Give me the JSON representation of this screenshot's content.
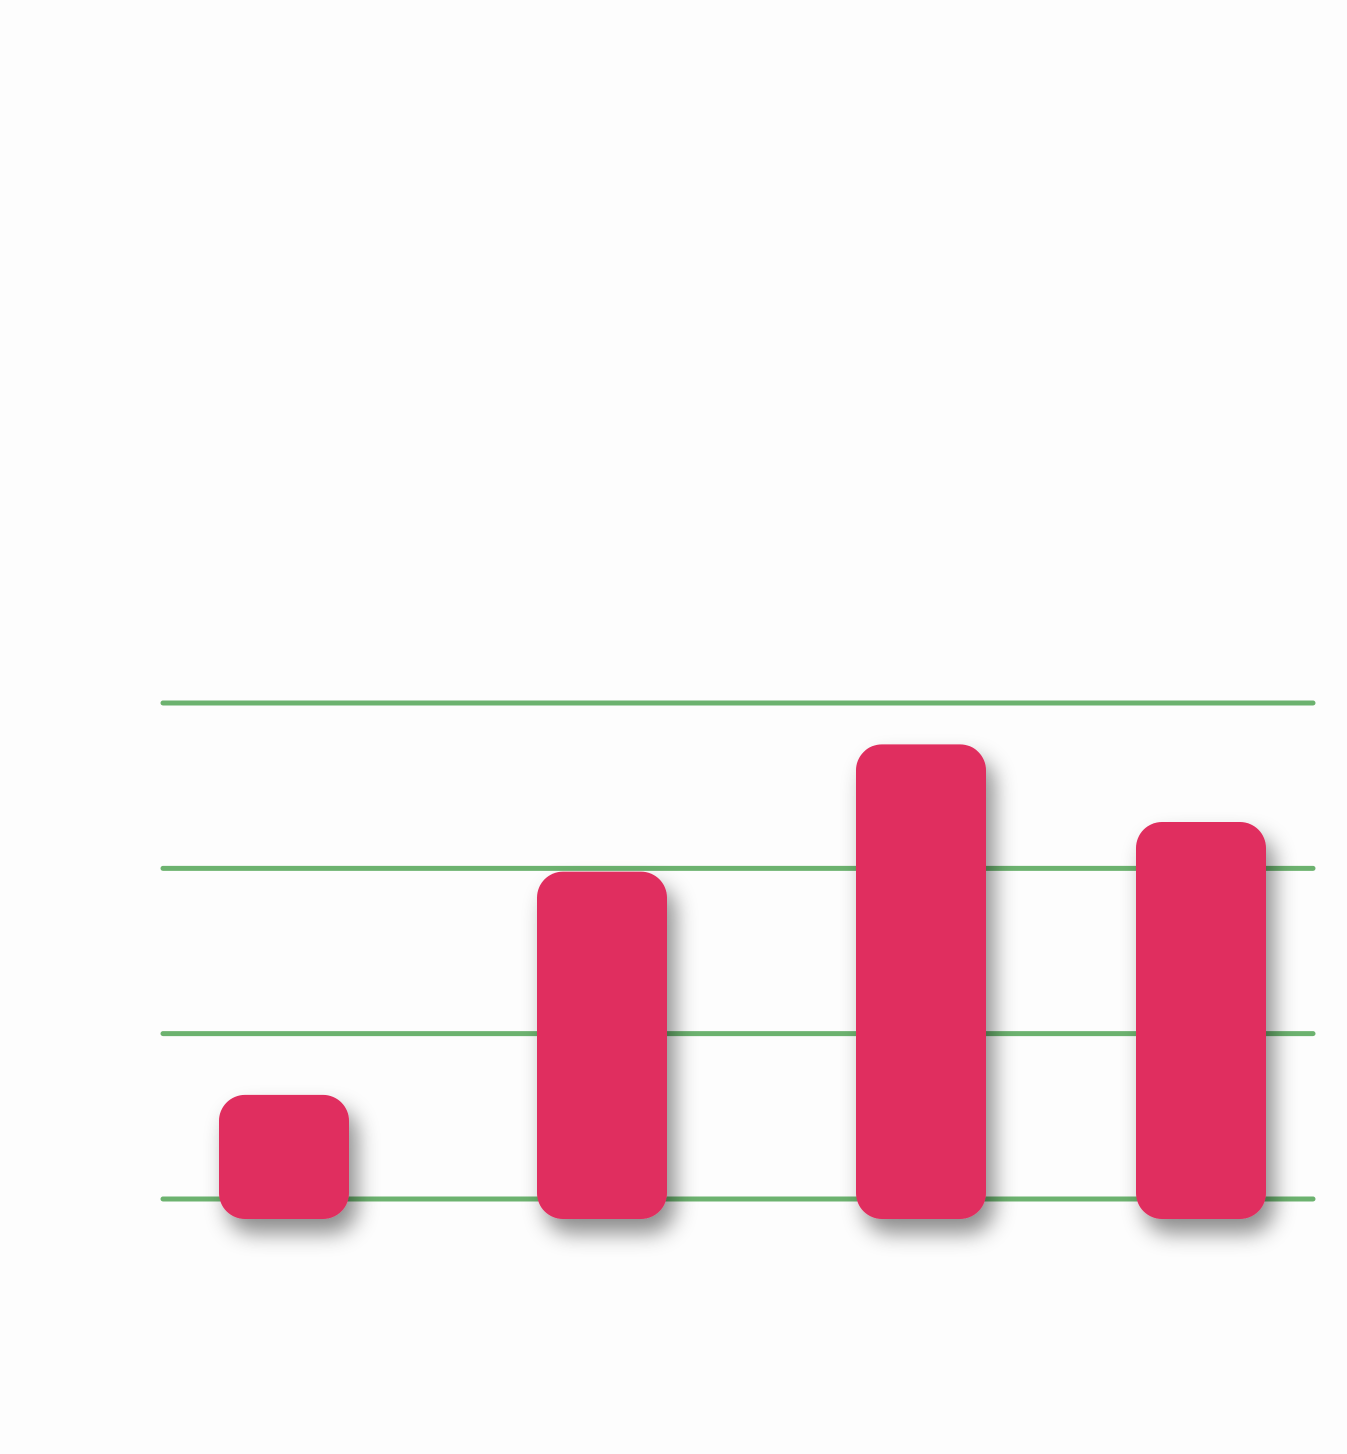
{
  "chart_data": {
    "type": "bar",
    "title": "",
    "xlabel": "",
    "ylabel": "",
    "categories": [
      "",
      "",
      "",
      ""
    ],
    "series": [
      {
        "values": [
          0.63,
          1.98,
          2.75,
          2.28
        ]
      }
    ],
    "ylim": [
      0,
      3
    ],
    "gridlines": [
      0,
      1,
      2,
      3
    ],
    "grid": true,
    "legend": "none",
    "colors": {
      "background": "#fdfdfd",
      "bar": "#e02e5e",
      "gridline": "#6cb26f"
    }
  }
}
